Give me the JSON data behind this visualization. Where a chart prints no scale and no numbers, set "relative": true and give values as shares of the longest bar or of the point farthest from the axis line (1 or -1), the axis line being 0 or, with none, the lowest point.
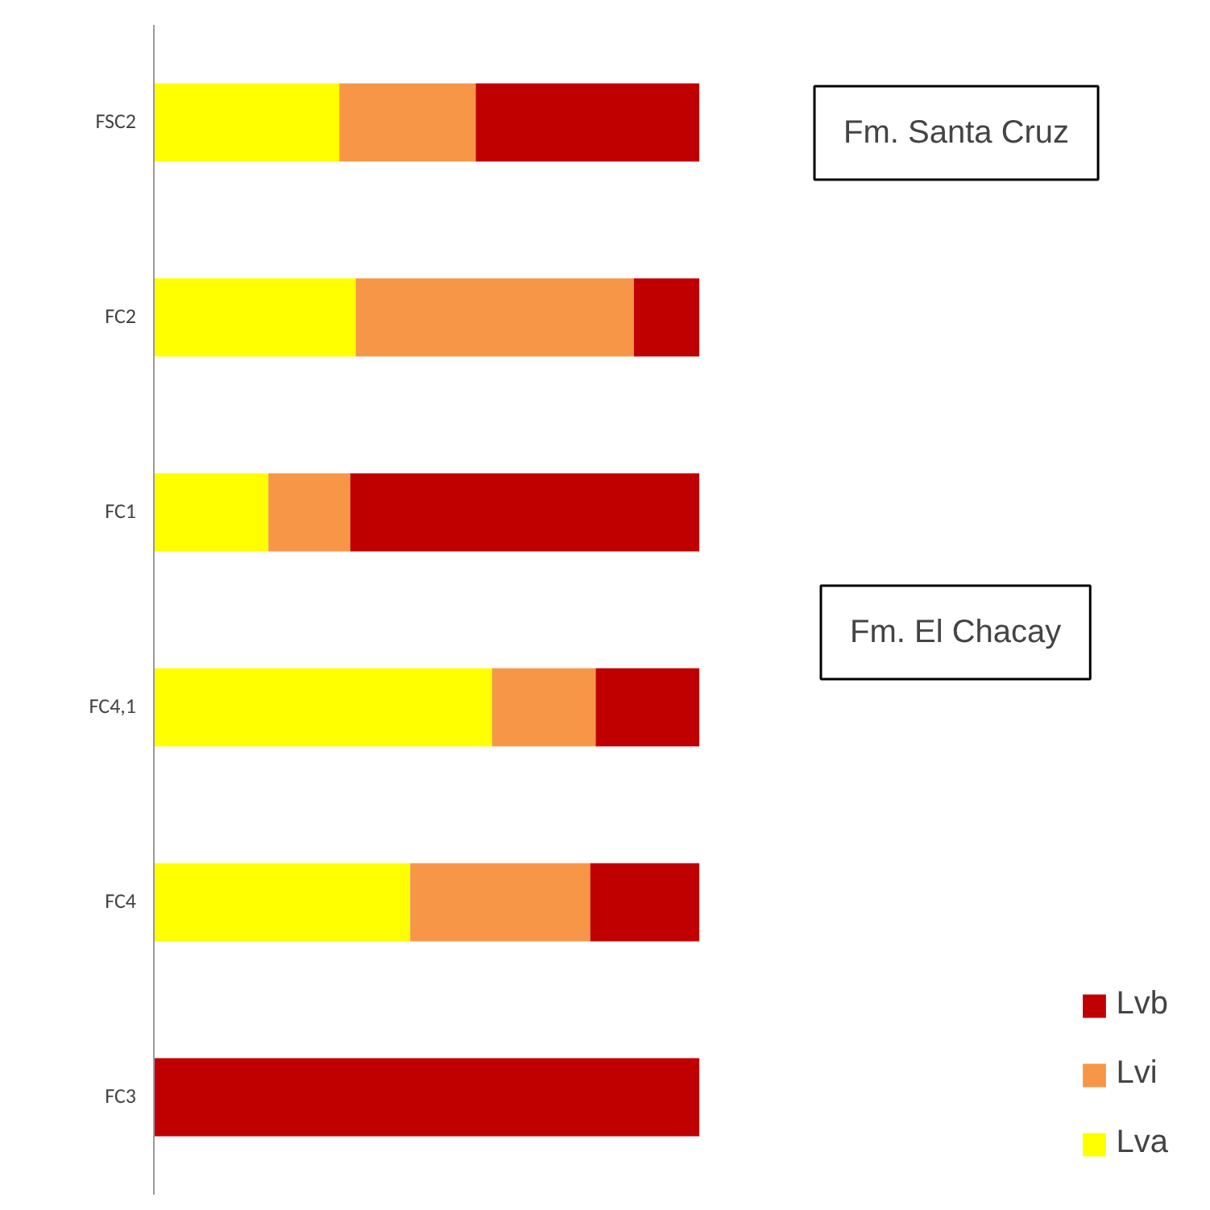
{
  "chart_data": {
    "type": "bar",
    "orientation": "horizontal",
    "stacked": true,
    "relative": true,
    "categories": [
      "FSC2",
      "FC2",
      "FC1",
      "FC4,1",
      "FC4",
      "FC3"
    ],
    "series": [
      {
        "name": "Lva",
        "color": "#ffff00",
        "values": [
          0.34,
          0.37,
          0.21,
          0.62,
          0.47,
          0
        ]
      },
      {
        "name": "Lvi",
        "color": "#f79646",
        "values": [
          0.25,
          0.51,
          0.15,
          0.19,
          0.33,
          0
        ]
      },
      {
        "name": "Lvb",
        "color": "#c00000",
        "values": [
          0.41,
          0.12,
          0.64,
          0.19,
          0.2,
          1.0
        ]
      }
    ],
    "annotations": [
      "Fm. Santa Cruz",
      "Fm. El Chacay"
    ],
    "legend": "bottom right",
    "grid": false
  }
}
